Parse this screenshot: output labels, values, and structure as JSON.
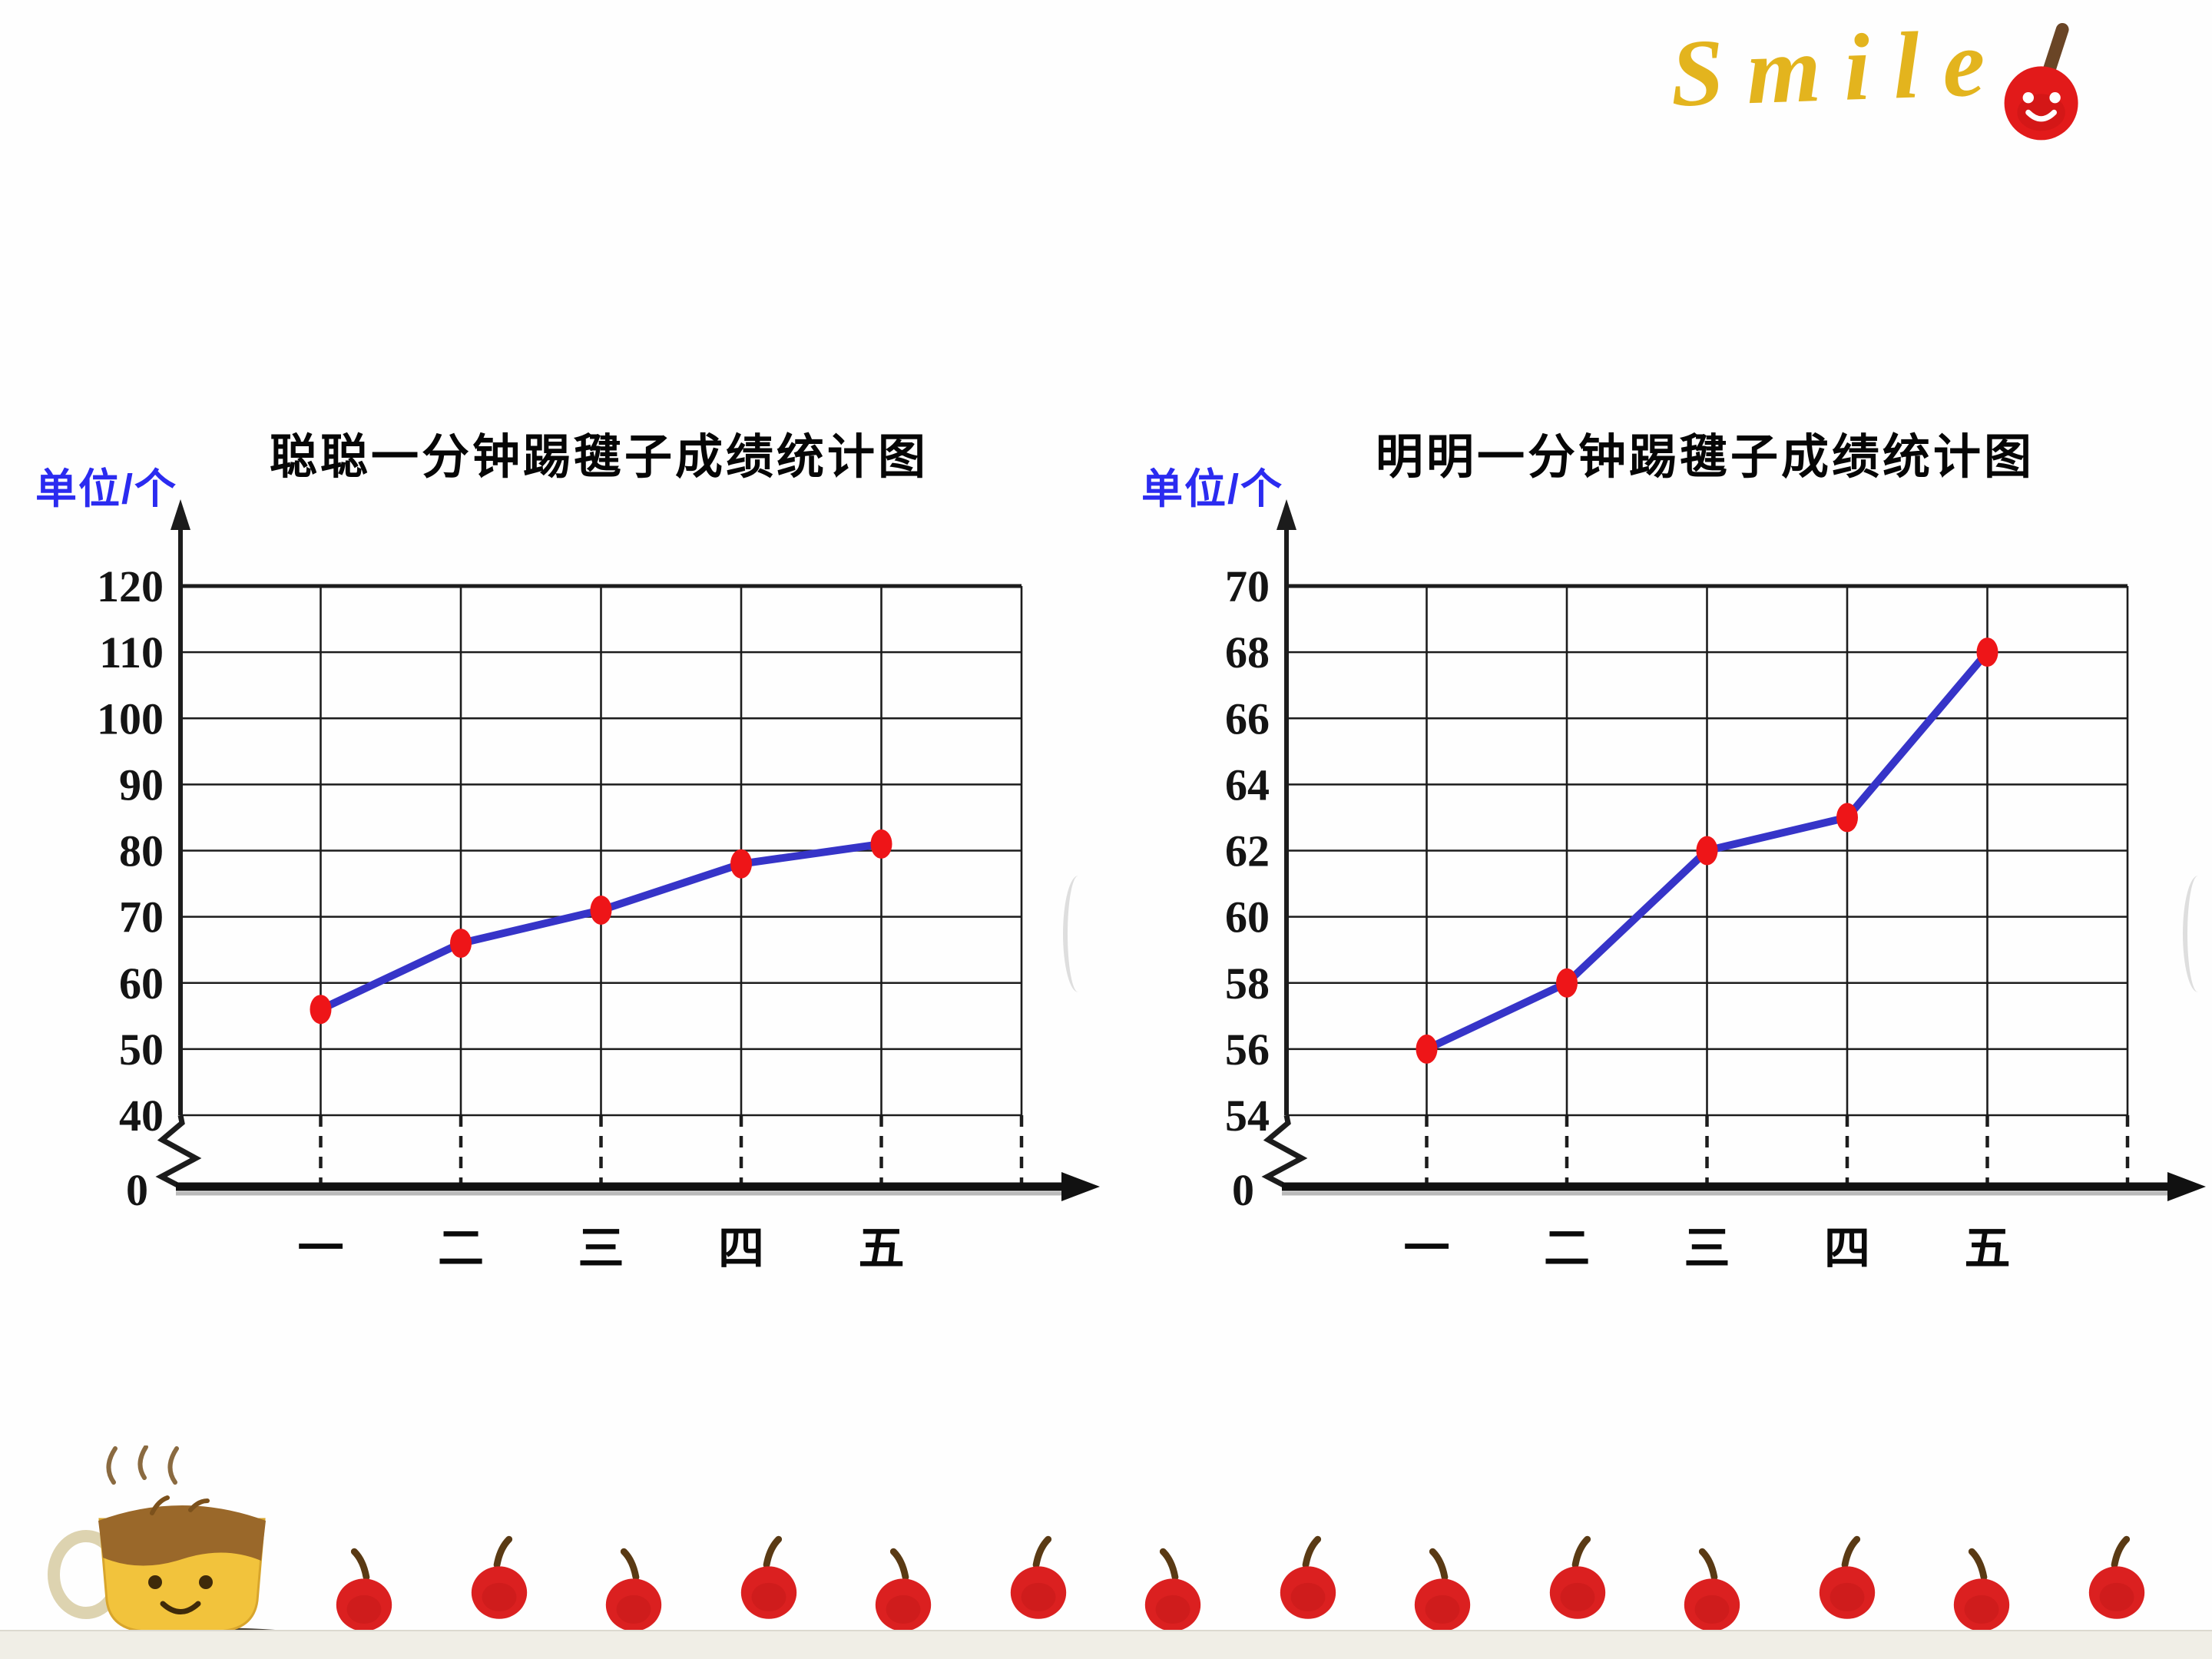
{
  "page": {
    "smile_text": "Smile",
    "apple_count": 14,
    "colors": {
      "accent_blue": "#2b2bf0",
      "line_blue": "#3634c8",
      "dot_red": "#ee1518",
      "smile_gold": "#e3b41e",
      "apple_red": "#db2020"
    }
  },
  "chart_data": [
    {
      "type": "line",
      "title": "聪聪一分钟踢毽子成绩统计图",
      "unit_label": "单位/个",
      "xlabel": "",
      "ylabel": "单位/个",
      "categories": [
        "一",
        "二",
        "三",
        "四",
        "五"
      ],
      "values": [
        56,
        66,
        71,
        78,
        81
      ],
      "yticks": [
        120,
        110,
        100,
        90,
        80,
        70,
        60,
        50,
        40
      ],
      "ylim": [
        40,
        120
      ],
      "origin_label": "0",
      "axis_break": true,
      "grid": true,
      "legend": "none",
      "line_color": "#3634c8",
      "point_color": "#ee1518"
    },
    {
      "type": "line",
      "title": "明明一分钟踢毽子成绩统计图",
      "unit_label": "单位/个",
      "xlabel": "",
      "ylabel": "单位/个",
      "categories": [
        "一",
        "二",
        "三",
        "四",
        "五"
      ],
      "values": [
        56,
        58,
        62,
        63,
        68
      ],
      "yticks": [
        70,
        68,
        66,
        64,
        62,
        60,
        58,
        56,
        54
      ],
      "ylim": [
        54,
        70
      ],
      "origin_label": "0",
      "axis_break": true,
      "grid": true,
      "legend": "none",
      "line_color": "#3634c8",
      "point_color": "#ee1518"
    }
  ]
}
